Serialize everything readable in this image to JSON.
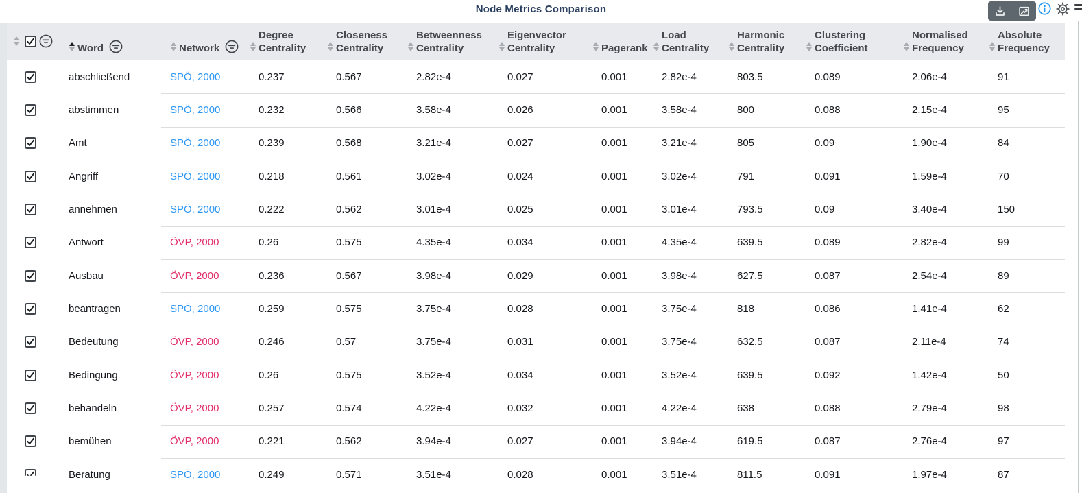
{
  "title": "Node Metrics Comparison",
  "toolbar": {
    "icons": [
      "download-icon",
      "trend-chart-icon"
    ],
    "info_icon": "info-icon",
    "settings_icon": "gear-icon",
    "menu_icon": "hamburger-icon"
  },
  "colors": {
    "spo": "#2b96f3",
    "ovp": "#e12d68",
    "info": "#2196f3",
    "title": "#2a3f5f",
    "header_bg": "#e8eaed"
  },
  "table": {
    "columns": [
      {
        "key": "select",
        "label": "",
        "filter": true,
        "checkbox": true
      },
      {
        "key": "word",
        "label": "Word",
        "filter": true,
        "sort": "asc"
      },
      {
        "key": "network",
        "label": "Network",
        "filter": true
      },
      {
        "key": "degree",
        "label": "Degree Centrality"
      },
      {
        "key": "closeness",
        "label": "Closeness Centrality"
      },
      {
        "key": "betweenness",
        "label": "Betweenness Centrality"
      },
      {
        "key": "eigenvector",
        "label": "Eigenvector Centrality"
      },
      {
        "key": "pagerank",
        "label": "Pagerank"
      },
      {
        "key": "load",
        "label": "Load Centrality"
      },
      {
        "key": "harmonic",
        "label": "Harmonic Centrality"
      },
      {
        "key": "clustering",
        "label": "Clustering Coefficient"
      },
      {
        "key": "normalised",
        "label": "Normalised Frequency"
      },
      {
        "key": "absolute",
        "label": "Absolute Frequency"
      }
    ],
    "rows": [
      {
        "checked": true,
        "word": "abschließend",
        "network": "SPÖ, 2000",
        "party": "spo",
        "degree": "0.237",
        "closeness": "0.567",
        "betweenness": "2.82e-4",
        "eigenvector": "0.027",
        "pagerank": "0.001",
        "load": "2.82e-4",
        "harmonic": "803.5",
        "clustering": "0.089",
        "normalised": "2.06e-4",
        "absolute": "91"
      },
      {
        "checked": true,
        "word": "abstimmen",
        "network": "SPÖ, 2000",
        "party": "spo",
        "degree": "0.232",
        "closeness": "0.566",
        "betweenness": "3.58e-4",
        "eigenvector": "0.026",
        "pagerank": "0.001",
        "load": "3.58e-4",
        "harmonic": "800",
        "clustering": "0.088",
        "normalised": "2.15e-4",
        "absolute": "95"
      },
      {
        "checked": true,
        "word": "Amt",
        "network": "SPÖ, 2000",
        "party": "spo",
        "degree": "0.239",
        "closeness": "0.568",
        "betweenness": "3.21e-4",
        "eigenvector": "0.027",
        "pagerank": "0.001",
        "load": "3.21e-4",
        "harmonic": "805",
        "clustering": "0.09",
        "normalised": "1.90e-4",
        "absolute": "84"
      },
      {
        "checked": true,
        "word": "Angriff",
        "network": "SPÖ, 2000",
        "party": "spo",
        "degree": "0.218",
        "closeness": "0.561",
        "betweenness": "3.02e-4",
        "eigenvector": "0.024",
        "pagerank": "0.001",
        "load": "3.02e-4",
        "harmonic": "791",
        "clustering": "0.091",
        "normalised": "1.59e-4",
        "absolute": "70"
      },
      {
        "checked": true,
        "word": "annehmen",
        "network": "SPÖ, 2000",
        "party": "spo",
        "degree": "0.222",
        "closeness": "0.562",
        "betweenness": "3.01e-4",
        "eigenvector": "0.025",
        "pagerank": "0.001",
        "load": "3.01e-4",
        "harmonic": "793.5",
        "clustering": "0.09",
        "normalised": "3.40e-4",
        "absolute": "150"
      },
      {
        "checked": true,
        "word": "Antwort",
        "network": "ÖVP, 2000",
        "party": "ovp",
        "degree": "0.26",
        "closeness": "0.575",
        "betweenness": "4.35e-4",
        "eigenvector": "0.034",
        "pagerank": "0.001",
        "load": "4.35e-4",
        "harmonic": "639.5",
        "clustering": "0.089",
        "normalised": "2.82e-4",
        "absolute": "99"
      },
      {
        "checked": true,
        "word": "Ausbau",
        "network": "ÖVP, 2000",
        "party": "ovp",
        "degree": "0.236",
        "closeness": "0.567",
        "betweenness": "3.98e-4",
        "eigenvector": "0.029",
        "pagerank": "0.001",
        "load": "3.98e-4",
        "harmonic": "627.5",
        "clustering": "0.087",
        "normalised": "2.54e-4",
        "absolute": "89"
      },
      {
        "checked": true,
        "word": "beantragen",
        "network": "SPÖ, 2000",
        "party": "spo",
        "degree": "0.259",
        "closeness": "0.575",
        "betweenness": "3.75e-4",
        "eigenvector": "0.028",
        "pagerank": "0.001",
        "load": "3.75e-4",
        "harmonic": "818",
        "clustering": "0.086",
        "normalised": "1.41e-4",
        "absolute": "62"
      },
      {
        "checked": true,
        "word": "Bedeutung",
        "network": "ÖVP, 2000",
        "party": "ovp",
        "degree": "0.246",
        "closeness": "0.57",
        "betweenness": "3.75e-4",
        "eigenvector": "0.031",
        "pagerank": "0.001",
        "load": "3.75e-4",
        "harmonic": "632.5",
        "clustering": "0.087",
        "normalised": "2.11e-4",
        "absolute": "74"
      },
      {
        "checked": true,
        "word": "Bedingung",
        "network": "ÖVP, 2000",
        "party": "ovp",
        "degree": "0.26",
        "closeness": "0.575",
        "betweenness": "3.52e-4",
        "eigenvector": "0.034",
        "pagerank": "0.001",
        "load": "3.52e-4",
        "harmonic": "639.5",
        "clustering": "0.092",
        "normalised": "1.42e-4",
        "absolute": "50"
      },
      {
        "checked": true,
        "word": "behandeln",
        "network": "ÖVP, 2000",
        "party": "ovp",
        "degree": "0.257",
        "closeness": "0.574",
        "betweenness": "4.22e-4",
        "eigenvector": "0.032",
        "pagerank": "0.001",
        "load": "4.22e-4",
        "harmonic": "638",
        "clustering": "0.088",
        "normalised": "2.79e-4",
        "absolute": "98"
      },
      {
        "checked": true,
        "word": "bemühen",
        "network": "ÖVP, 2000",
        "party": "ovp",
        "degree": "0.221",
        "closeness": "0.562",
        "betweenness": "3.94e-4",
        "eigenvector": "0.027",
        "pagerank": "0.001",
        "load": "3.94e-4",
        "harmonic": "619.5",
        "clustering": "0.087",
        "normalised": "2.76e-4",
        "absolute": "97"
      },
      {
        "checked": true,
        "word": "Beratung",
        "network": "SPÖ, 2000",
        "party": "spo",
        "degree": "0.249",
        "closeness": "0.571",
        "betweenness": "3.51e-4",
        "eigenvector": "0.028",
        "pagerank": "0.001",
        "load": "3.51e-4",
        "harmonic": "811.5",
        "clustering": "0.091",
        "normalised": "1.97e-4",
        "absolute": "87"
      }
    ]
  }
}
